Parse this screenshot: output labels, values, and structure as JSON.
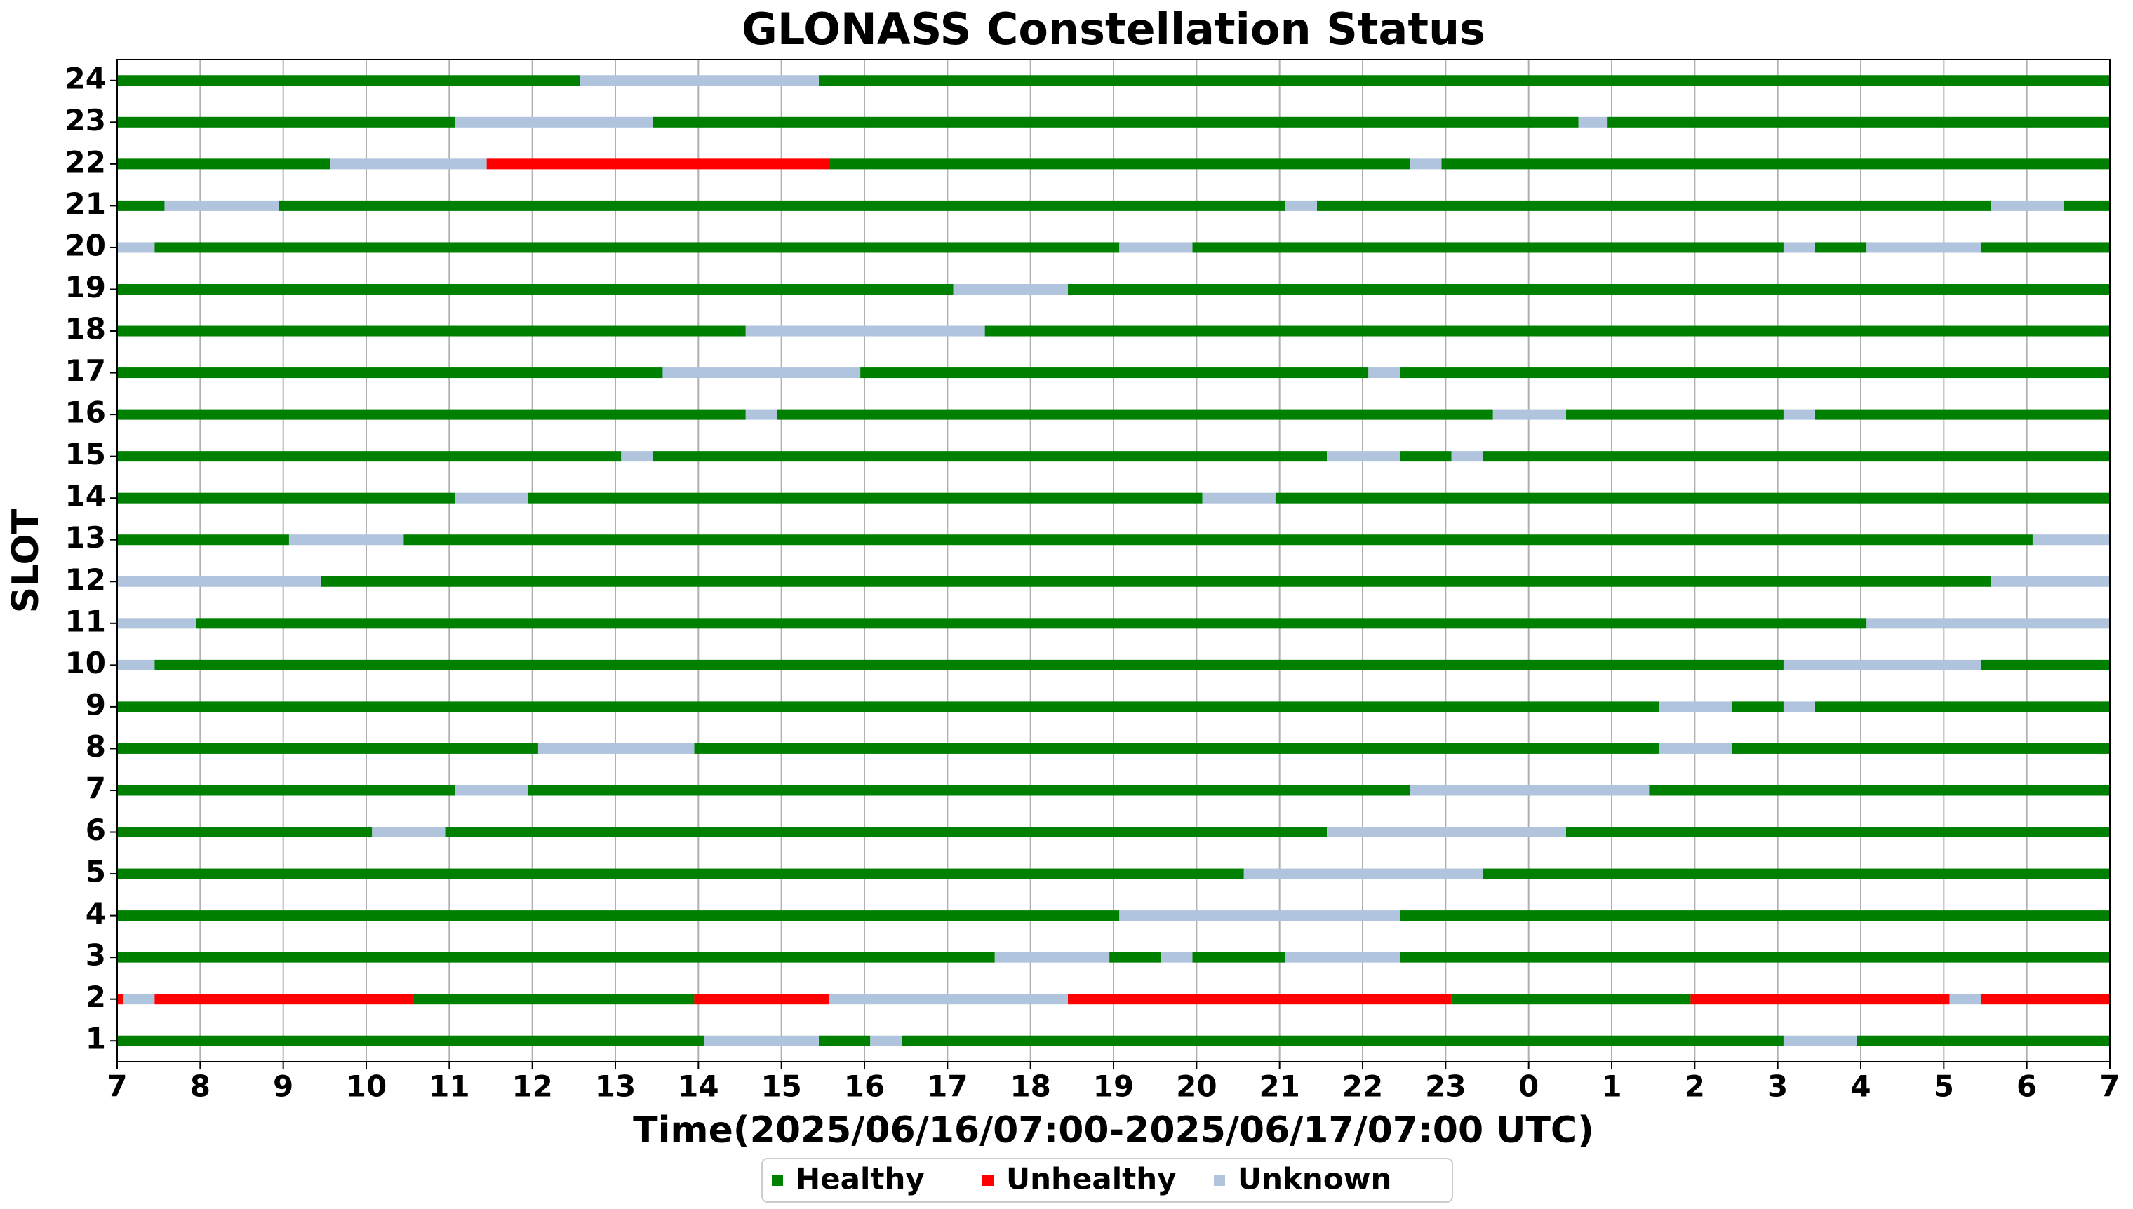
{
  "chart_data": {
    "type": "timeline",
    "title": "GLONASS Constellation Status",
    "xlabel": "Time(2025/06/16/07:00-2025/06/17/07:00 UTC)",
    "ylabel": "SLOT",
    "xlim": [
      7,
      31
    ],
    "ylim": [
      0.5,
      24.5
    ],
    "xticks": [
      7,
      8,
      9,
      10,
      11,
      12,
      13,
      14,
      15,
      16,
      17,
      18,
      19,
      20,
      21,
      22,
      23,
      {
        "value": 24,
        "label": "0"
      },
      {
        "value": 25,
        "label": "1"
      },
      {
        "value": 26,
        "label": "2"
      },
      {
        "value": 27,
        "label": "3"
      },
      {
        "value": 28,
        "label": "4"
      },
      {
        "value": 29,
        "label": "5"
      },
      {
        "value": 30,
        "label": "6"
      },
      {
        "value": 31,
        "label": "7"
      }
    ],
    "yticks": [
      1,
      2,
      3,
      4,
      5,
      6,
      7,
      8,
      9,
      10,
      11,
      12,
      13,
      14,
      15,
      16,
      17,
      18,
      19,
      20,
      21,
      22,
      23,
      24
    ],
    "grid": "x",
    "legend": "bottom",
    "series": [
      {
        "name": "Healthy",
        "color": "#008000",
        "bars": [
          [
            24,
            7,
            12.57
          ],
          [
            24,
            15.45,
            31
          ],
          [
            23,
            7,
            11.07
          ],
          [
            23,
            13.45,
            24.6
          ],
          [
            23,
            24.95,
            31
          ],
          [
            22,
            7,
            9.57
          ],
          [
            22,
            15.57,
            22.57
          ],
          [
            22,
            22.95,
            31
          ],
          [
            21,
            7,
            7.57
          ],
          [
            21,
            8.95,
            21.07
          ],
          [
            21,
            21.45,
            29.57
          ],
          [
            21,
            30.45,
            31
          ],
          [
            20,
            7.45,
            19.07
          ],
          [
            20,
            19.95,
            27.07
          ],
          [
            20,
            27.45,
            28.07
          ],
          [
            20,
            29.45,
            31
          ],
          [
            19,
            7,
            17.07
          ],
          [
            19,
            18.45,
            31
          ],
          [
            18,
            7,
            14.57
          ],
          [
            18,
            17.45,
            31
          ],
          [
            17,
            7,
            13.57
          ],
          [
            17,
            15.95,
            22.07
          ],
          [
            17,
            22.45,
            31
          ],
          [
            16,
            7,
            14.57
          ],
          [
            16,
            14.95,
            23.57
          ],
          [
            16,
            24.45,
            27.07
          ],
          [
            16,
            27.45,
            31
          ],
          [
            15,
            7,
            13.07
          ],
          [
            15,
            13.45,
            21.57
          ],
          [
            15,
            22.45,
            23.07
          ],
          [
            15,
            23.45,
            31
          ],
          [
            14,
            7,
            11.07
          ],
          [
            14,
            11.95,
            20.07
          ],
          [
            14,
            20.95,
            31
          ],
          [
            13,
            7,
            9.07
          ],
          [
            13,
            10.45,
            30.07
          ],
          [
            12,
            9.45,
            29.57
          ],
          [
            11,
            7.95,
            28.07
          ],
          [
            10,
            7.45,
            27.07
          ],
          [
            10,
            29.45,
            31
          ],
          [
            9,
            7,
            25.57
          ],
          [
            9,
            26.45,
            27.07
          ],
          [
            9,
            27.45,
            31
          ],
          [
            8,
            7,
            12.07
          ],
          [
            8,
            13.95,
            25.57
          ],
          [
            8,
            26.45,
            31
          ],
          [
            7,
            7,
            11.07
          ],
          [
            7,
            11.95,
            22.57
          ],
          [
            7,
            25.45,
            31
          ],
          [
            6,
            7,
            10.07
          ],
          [
            6,
            10.95,
            21.57
          ],
          [
            6,
            24.45,
            31
          ],
          [
            5,
            7,
            20.57
          ],
          [
            5,
            23.45,
            31
          ],
          [
            4,
            7,
            19.07
          ],
          [
            4,
            22.45,
            31
          ],
          [
            3,
            7,
            17.57
          ],
          [
            3,
            18.95,
            19.57
          ],
          [
            3,
            19.95,
            21.07
          ],
          [
            3,
            22.45,
            31
          ],
          [
            2,
            10.57,
            13.95
          ],
          [
            2,
            23.07,
            25.95
          ],
          [
            1,
            7,
            14.07
          ],
          [
            1,
            15.45,
            16.07
          ],
          [
            1,
            16.45,
            27.07
          ],
          [
            1,
            27.95,
            31
          ]
        ]
      },
      {
        "name": "Unhealthy",
        "color": "#ff0000",
        "bars": [
          [
            22,
            11.45,
            15.57
          ],
          [
            2,
            7,
            7.07
          ],
          [
            2,
            7.45,
            10.57
          ],
          [
            2,
            13.95,
            15.57
          ],
          [
            2,
            18.45,
            23.07
          ],
          [
            2,
            25.95,
            29.07
          ],
          [
            2,
            29.45,
            31
          ]
        ]
      },
      {
        "name": "Unknown",
        "color": "#b0c4de",
        "bars": [
          [
            24,
            12.57,
            15.45
          ],
          [
            23,
            11.07,
            13.45
          ],
          [
            23,
            24.6,
            24.95
          ],
          [
            22,
            9.57,
            11.45
          ],
          [
            22,
            22.57,
            22.95
          ],
          [
            21,
            7.57,
            8.95
          ],
          [
            21,
            21.07,
            21.45
          ],
          [
            21,
            29.57,
            30.45
          ],
          [
            20,
            7,
            7.45
          ],
          [
            20,
            19.07,
            19.95
          ],
          [
            20,
            27.07,
            27.45
          ],
          [
            20,
            28.07,
            29.45
          ],
          [
            19,
            17.07,
            18.45
          ],
          [
            18,
            14.57,
            17.45
          ],
          [
            17,
            13.57,
            15.95
          ],
          [
            17,
            22.07,
            22.45
          ],
          [
            16,
            14.57,
            14.95
          ],
          [
            16,
            23.57,
            24.45
          ],
          [
            16,
            27.07,
            27.45
          ],
          [
            15,
            13.07,
            13.45
          ],
          [
            15,
            21.57,
            22.45
          ],
          [
            15,
            23.07,
            23.45
          ],
          [
            14,
            11.07,
            11.95
          ],
          [
            14,
            20.07,
            20.95
          ],
          [
            13,
            9.07,
            10.45
          ],
          [
            13,
            30.07,
            31
          ],
          [
            12,
            7,
            9.45
          ],
          [
            12,
            29.57,
            31
          ],
          [
            11,
            7,
            7.95
          ],
          [
            11,
            28.07,
            31
          ],
          [
            10,
            7,
            7.45
          ],
          [
            10,
            27.07,
            29.45
          ],
          [
            9,
            25.57,
            26.45
          ],
          [
            9,
            27.07,
            27.45
          ],
          [
            8,
            12.07,
            13.95
          ],
          [
            8,
            25.57,
            26.45
          ],
          [
            7,
            11.07,
            11.95
          ],
          [
            7,
            22.57,
            25.45
          ],
          [
            6,
            10.07,
            10.95
          ],
          [
            6,
            21.57,
            24.45
          ],
          [
            5,
            20.57,
            23.45
          ],
          [
            4,
            19.07,
            22.45
          ],
          [
            3,
            17.57,
            18.95
          ],
          [
            3,
            19.57,
            19.95
          ],
          [
            3,
            21.07,
            22.45
          ],
          [
            2,
            7.07,
            7.45
          ],
          [
            2,
            15.57,
            18.45
          ],
          [
            2,
            29.07,
            29.45
          ],
          [
            1,
            14.07,
            15.45
          ],
          [
            1,
            16.07,
            16.45
          ],
          [
            1,
            27.07,
            27.95
          ]
        ]
      }
    ]
  }
}
